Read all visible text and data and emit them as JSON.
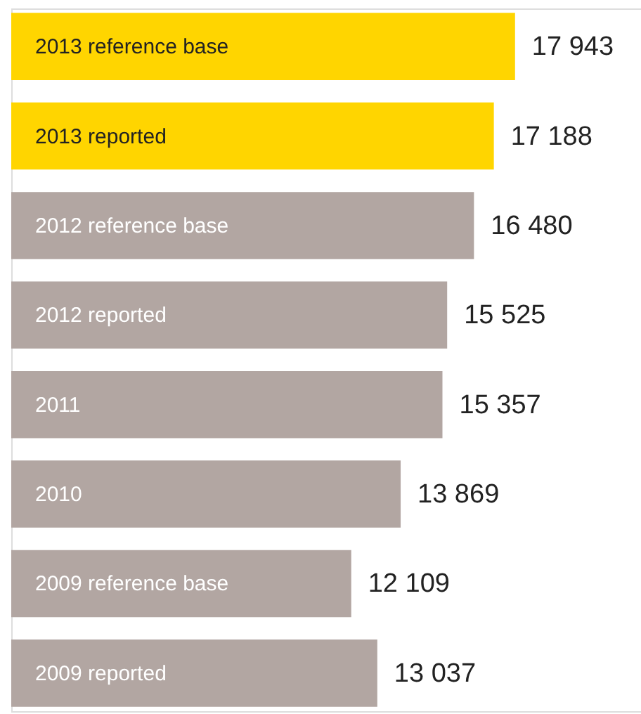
{
  "chart_data": {
    "type": "bar",
    "orientation": "horizontal",
    "categories": [
      "2013 reference base",
      "2013 reported",
      "2012 reference base",
      "2012 reported",
      "2011",
      "2010",
      "2009 reference base",
      "2009 reported"
    ],
    "values": [
      17943,
      17188,
      16480,
      15525,
      15357,
      13869,
      12109,
      13037
    ],
    "value_labels": [
      "17 943",
      "17 188",
      "16 480",
      "15 525",
      "15 357",
      "13 869",
      "12 109",
      "13 037"
    ],
    "colors": [
      "#ffd500",
      "#ffd500",
      "#b2a6a2",
      "#b2a6a2",
      "#b2a6a2",
      "#b2a6a2",
      "#b2a6a2",
      "#b2a6a2"
    ],
    "grid": false,
    "tick_labels": false
  }
}
